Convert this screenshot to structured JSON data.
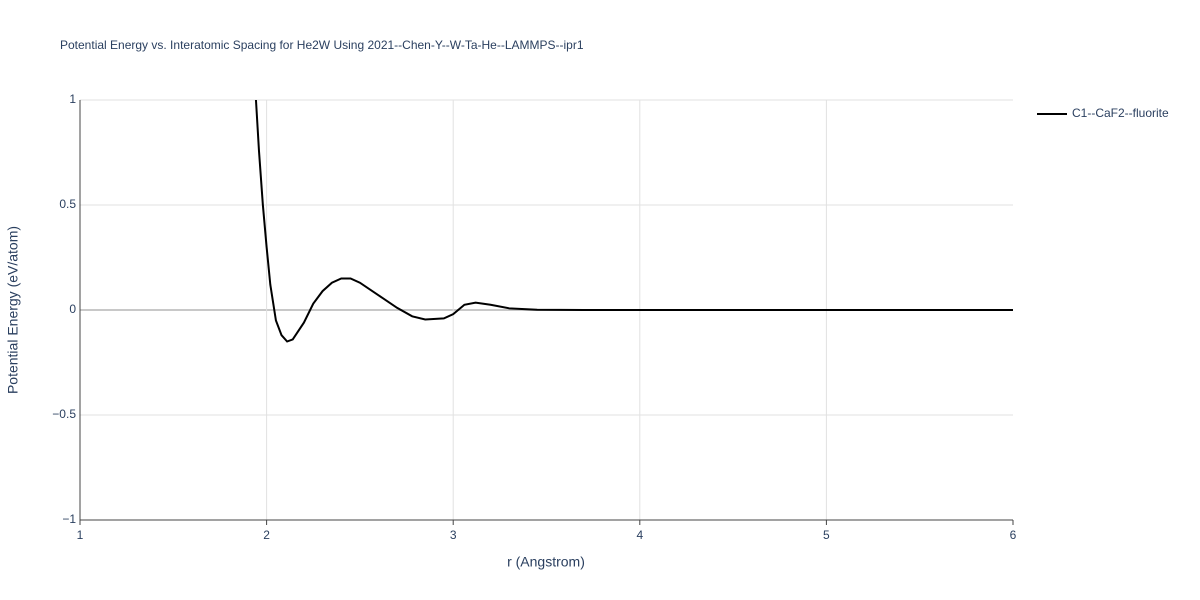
{
  "chart_data": {
    "type": "line",
    "title": "Potential Energy vs. Interatomic Spacing for He2W Using 2021--Chen-Y--W-Ta-He--LAMMPS--ipr1",
    "x_label": "r (Angstrom)",
    "y_label": "Potential Energy (eV/atom)",
    "xlim": [
      1,
      6
    ],
    "ylim": [
      -1,
      1
    ],
    "xticks": [
      1,
      2,
      3,
      4,
      5,
      6
    ],
    "yticks": [
      {
        "value": -1,
        "label": "−1"
      },
      {
        "value": -0.5,
        "label": "−0.5"
      },
      0,
      0.5,
      1
    ],
    "grid": true,
    "legend": "top-right",
    "series": [
      {
        "name": "C1--CaF2--fluorite",
        "color": "#000000",
        "x": [
          1.943,
          1.959,
          1.98,
          2.0,
          2.02,
          2.05,
          2.08,
          2.11,
          2.14,
          2.2,
          2.25,
          2.3,
          2.35,
          2.4,
          2.45,
          2.5,
          2.6,
          2.7,
          2.78,
          2.85,
          2.95,
          3.0,
          3.06,
          3.12,
          3.2,
          3.3,
          3.45,
          3.7,
          4.5,
          6
        ],
        "values": [
          1.0,
          0.76,
          0.5,
          0.3,
          0.12,
          -0.05,
          -0.12,
          -0.15,
          -0.14,
          -0.06,
          0.03,
          0.09,
          0.13,
          0.15,
          0.15,
          0.13,
          0.07,
          0.01,
          -0.03,
          -0.045,
          -0.04,
          -0.02,
          0.025,
          0.035,
          0.025,
          0.008,
          0.001,
          0,
          0,
          0
        ]
      }
    ]
  }
}
